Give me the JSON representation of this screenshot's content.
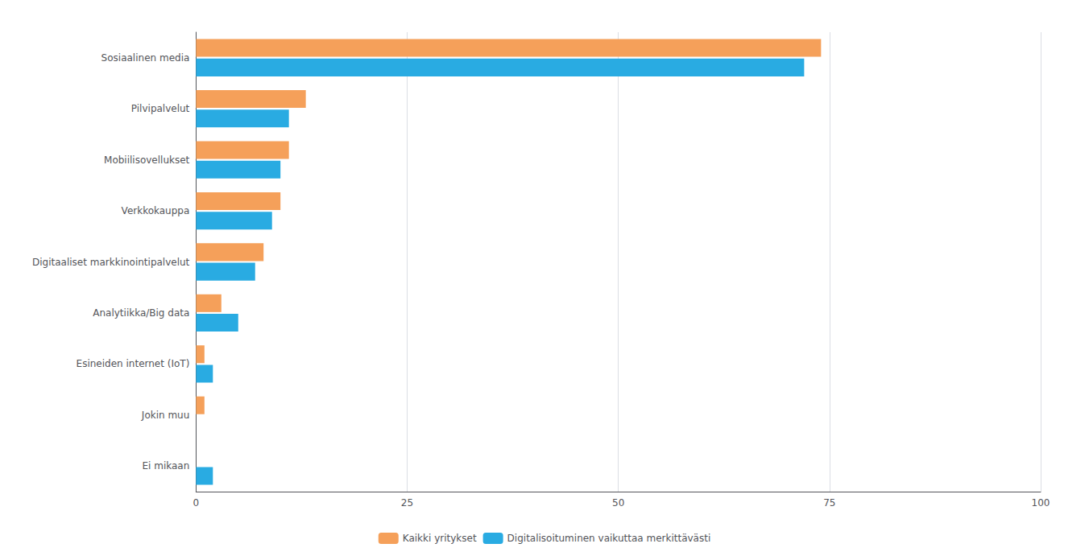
{
  "chart_data": {
    "type": "bar",
    "orientation": "horizontal",
    "categories": [
      "Ei mikaan",
      "Jokin muu",
      "Esineiden internet (IoT)",
      "Analytiikka/Big data",
      "Digitaaliset markkinointipalvelut",
      "Verkkokauppa",
      "Mobiilisovellukset",
      "Pilvipalvelut",
      "Sosiaalinen media"
    ],
    "series": [
      {
        "name": "Kaikki yritykset",
        "color": "#F5A05A",
        "values": [
          0,
          1,
          1,
          3,
          8,
          10,
          11,
          13,
          74
        ]
      },
      {
        "name": "Digitalisoituminen vaikuttaa merkittävästi",
        "color": "#29ABE2",
        "values": [
          2,
          0,
          2,
          5,
          7,
          9,
          10,
          11,
          72
        ]
      }
    ],
    "xlim": [
      0,
      100
    ],
    "xticks": [
      0,
      25,
      50,
      75,
      100
    ],
    "grid": true,
    "legend": "bottom"
  }
}
